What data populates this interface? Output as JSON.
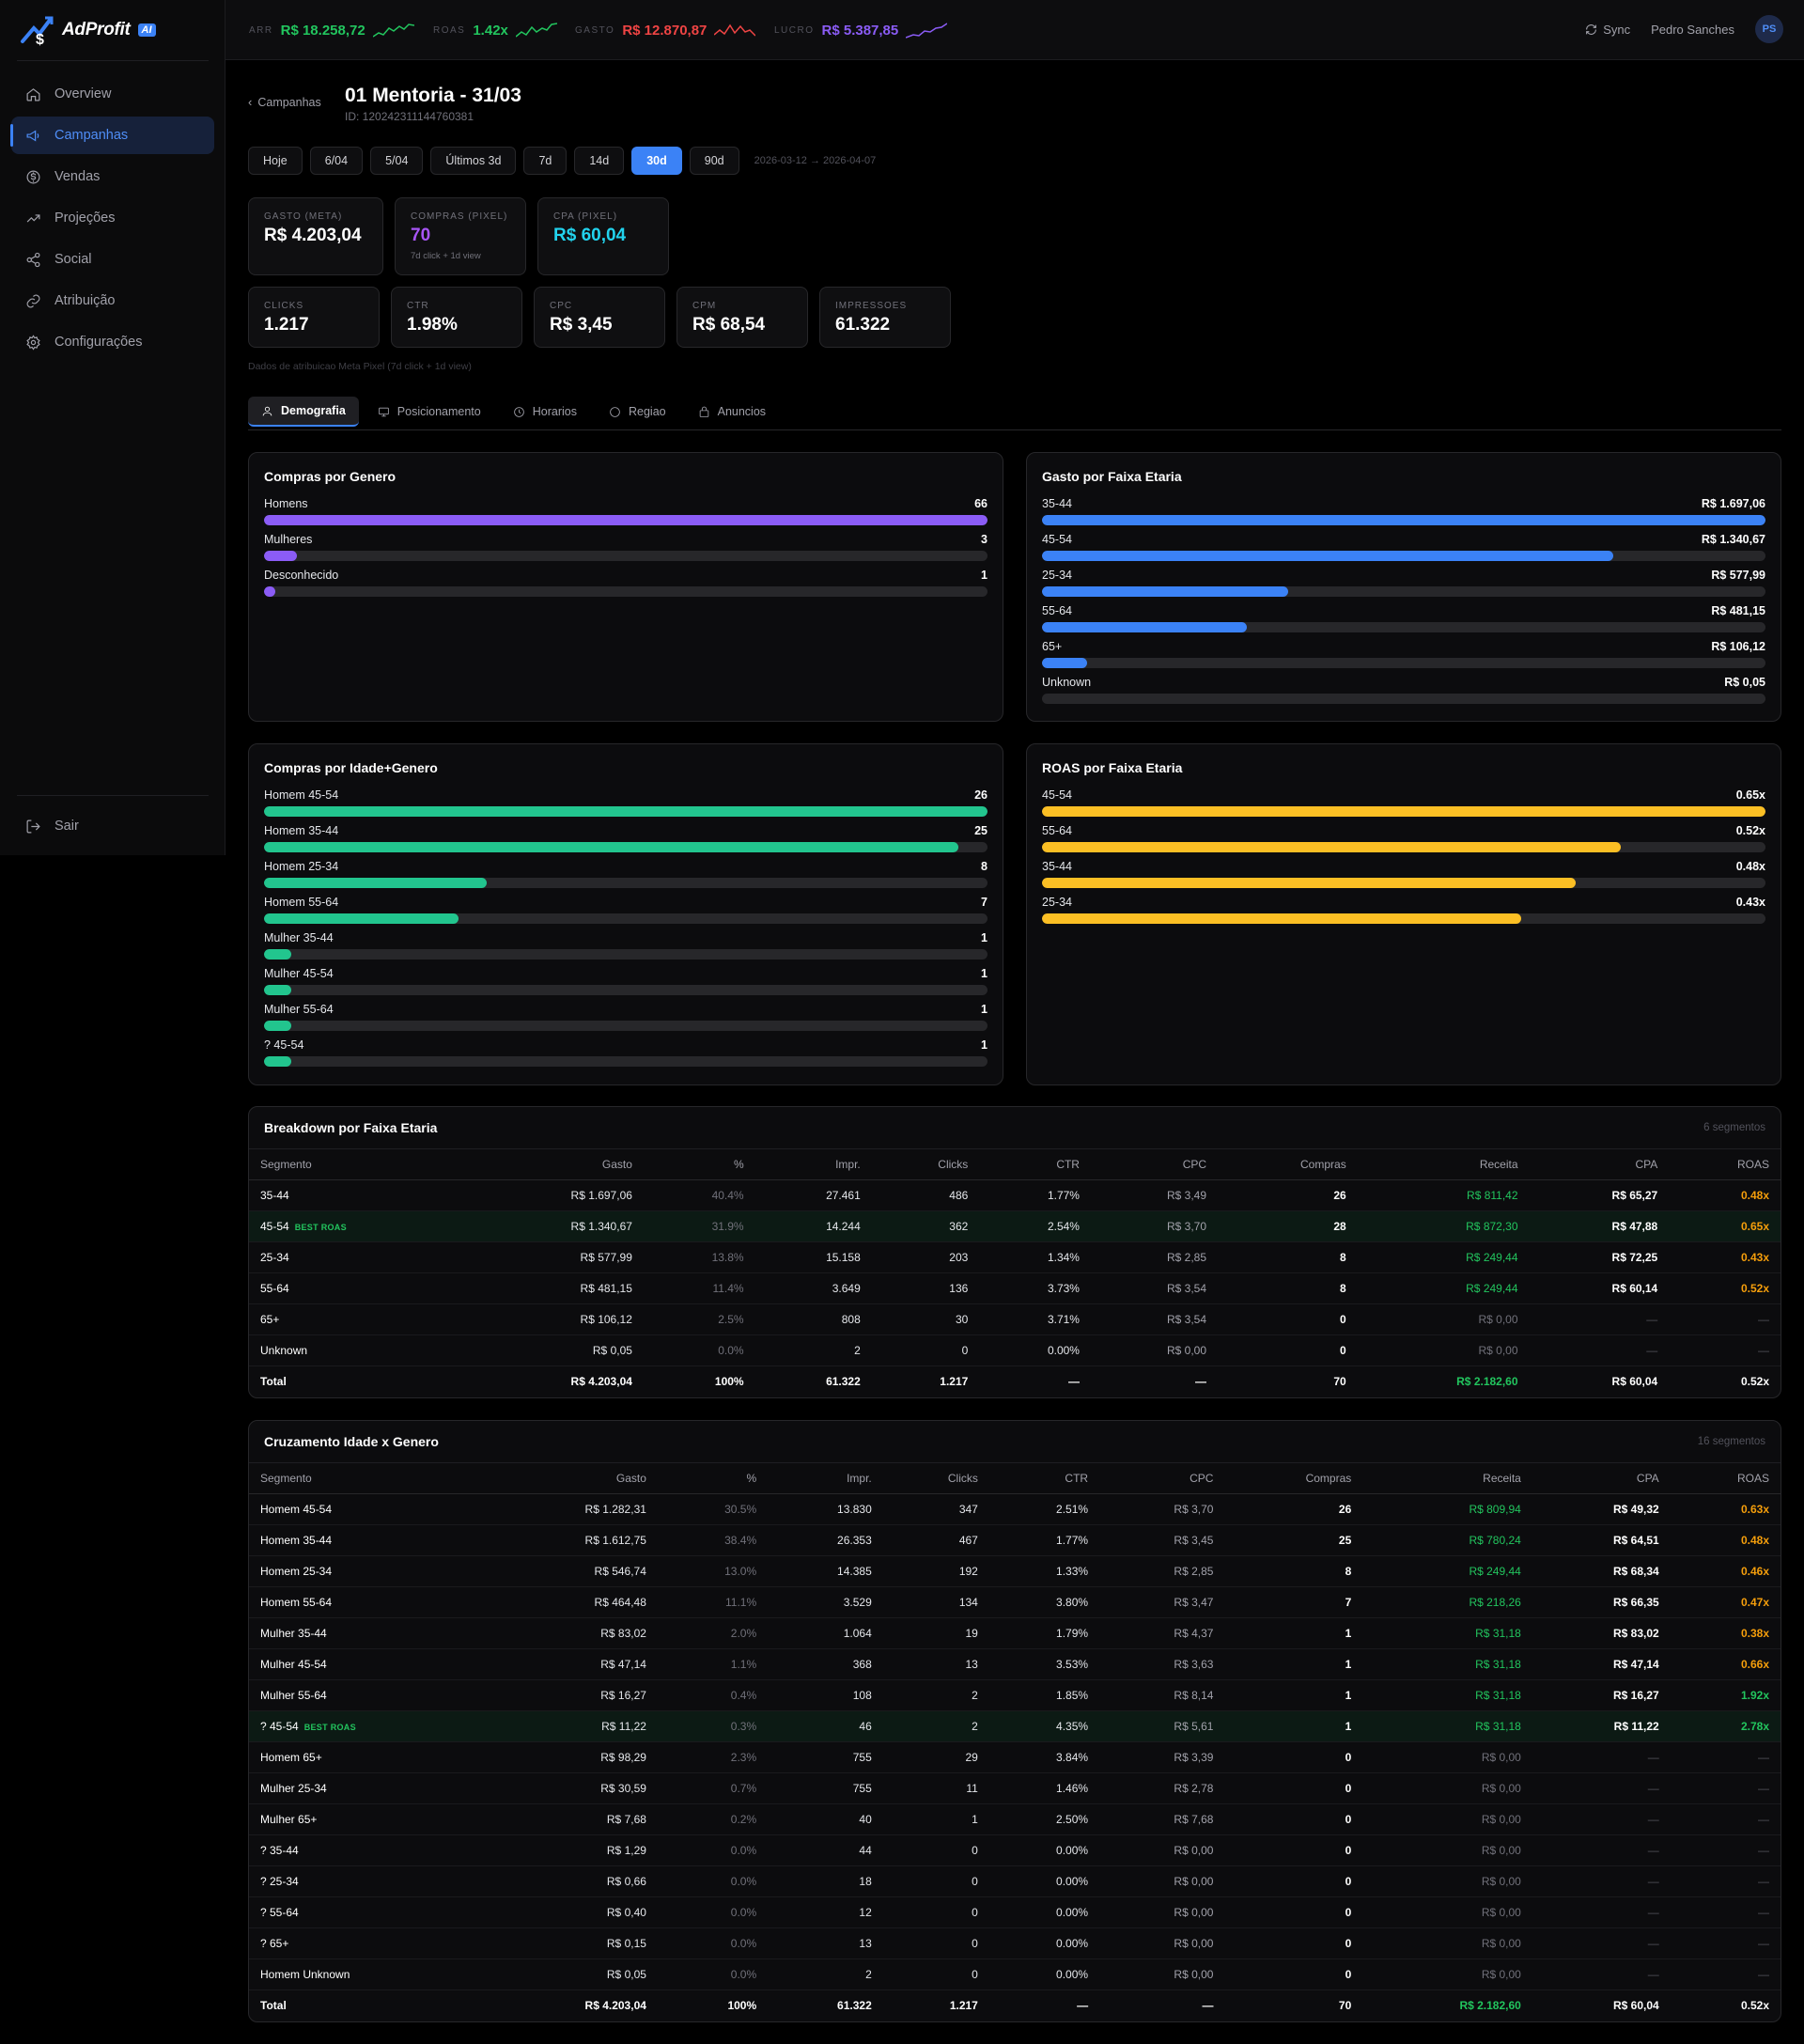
{
  "brand": {
    "name": "AdProfit",
    "badge": "AI"
  },
  "nav": {
    "items": [
      {
        "label": "Overview",
        "icon": "home-icon"
      },
      {
        "label": "Campanhas",
        "icon": "megaphone-icon"
      },
      {
        "label": "Vendas",
        "icon": "dollar-icon"
      },
      {
        "label": "Projeções",
        "icon": "trend-icon"
      },
      {
        "label": "Social",
        "icon": "share-icon"
      },
      {
        "label": "Atribuição",
        "icon": "link-icon"
      },
      {
        "label": "Configurações",
        "icon": "gear-icon"
      }
    ],
    "active": "Campanhas",
    "logout": "Sair"
  },
  "topbar": {
    "kpis": [
      {
        "label": "ARR",
        "value": "R$ 18.258,72",
        "color": "#22c55e"
      },
      {
        "label": "ROAS",
        "value": "1.42x",
        "color": "#22c55e"
      },
      {
        "label": "GASTO",
        "value": "R$ 12.870,87",
        "color": "#ef4444"
      },
      {
        "label": "LUCRO",
        "value": "R$ 5.387,85",
        "color": "#8b5cf6"
      }
    ],
    "sync": "Sync",
    "user": "Pedro Sanches",
    "avatar": "PS"
  },
  "header": {
    "back": "Campanhas",
    "title": "01 Mentoria - 31/03",
    "id": "ID: 120242311144760381"
  },
  "filters": {
    "buttons": [
      "Hoje",
      "6/04",
      "5/04",
      "Últimos 3d",
      "7d",
      "14d",
      "30d",
      "90d"
    ],
    "active": "30d",
    "range": "2026-03-12 → 2026-04-07"
  },
  "metrics_top": [
    {
      "label": "GASTO (META)",
      "value": "R$ 4.203,04",
      "color": "#ffffff",
      "sub": ""
    },
    {
      "label": "COMPRAS (PIXEL)",
      "value": "70",
      "color": "#a855f7",
      "sub": "7d click + 1d view"
    },
    {
      "label": "CPA (PIXEL)",
      "value": "R$ 60,04",
      "color": "#22d3ee",
      "sub": ""
    }
  ],
  "metrics_bottom": [
    {
      "label": "CLICKS",
      "value": "1.217"
    },
    {
      "label": "CTR",
      "value": "1.98%"
    },
    {
      "label": "CPC",
      "value": "R$ 3,45"
    },
    {
      "label": "CPM",
      "value": "R$ 68,54"
    },
    {
      "label": "IMPRESSOES",
      "value": "61.322"
    }
  ],
  "note": "Dados de atribuicao Meta Pixel (7d click + 1d view)",
  "tabs": [
    {
      "label": "Demografia",
      "icon": "user-icon"
    },
    {
      "label": "Posicionamento",
      "icon": "monitor-icon"
    },
    {
      "label": "Horarios",
      "icon": "clock-icon"
    },
    {
      "label": "Regiao",
      "icon": "globe-icon"
    },
    {
      "label": "Anuncios",
      "icon": "ad-icon"
    }
  ],
  "active_tab": "Demografia",
  "panels": [
    {
      "title": "Compras por Genero",
      "color": "#8b5cf6",
      "rows": [
        {
          "label": "Homens",
          "value": "66",
          "fill": 1.0
        },
        {
          "label": "Mulheres",
          "value": "3",
          "fill": 0.045
        },
        {
          "label": "Desconhecido",
          "value": "1",
          "fill": 0.015
        }
      ]
    },
    {
      "title": "Gasto por Faixa Etaria",
      "color": "#3b82f6",
      "rows": [
        {
          "label": "35-44",
          "value": "R$ 1.697,06",
          "fill": 1.0
        },
        {
          "label": "45-54",
          "value": "R$ 1.340,67",
          "fill": 0.79
        },
        {
          "label": "25-34",
          "value": "R$ 577,99",
          "fill": 0.34
        },
        {
          "label": "55-64",
          "value": "R$ 481,15",
          "fill": 0.283
        },
        {
          "label": "65+",
          "value": "R$ 106,12",
          "fill": 0.0625
        },
        {
          "label": "Unknown",
          "value": "R$ 0,05",
          "fill": 0.0
        }
      ]
    },
    {
      "title": "Compras por Idade+Genero",
      "color": "#22c58e",
      "rows": [
        {
          "label": "Homem 45-54",
          "value": "26",
          "fill": 1.0
        },
        {
          "label": "Homem 35-44",
          "value": "25",
          "fill": 0.96
        },
        {
          "label": "Homem 25-34",
          "value": "8",
          "fill": 0.308
        },
        {
          "label": "Homem 55-64",
          "value": "7",
          "fill": 0.269
        },
        {
          "label": "Mulher 35-44",
          "value": "1",
          "fill": 0.038
        },
        {
          "label": "Mulher 45-54",
          "value": "1",
          "fill": 0.038
        },
        {
          "label": "Mulher 55-64",
          "value": "1",
          "fill": 0.038
        },
        {
          "label": "? 45-54",
          "value": "1",
          "fill": 0.038
        }
      ]
    },
    {
      "title": "ROAS por Faixa Etaria",
      "color": "#fbbf24",
      "rows": [
        {
          "label": "45-54",
          "value": "0.65x",
          "fill": 1.0
        },
        {
          "label": "55-64",
          "value": "0.52x",
          "fill": 0.8
        },
        {
          "label": "35-44",
          "value": "0.48x",
          "fill": 0.738
        },
        {
          "label": "25-34",
          "value": "0.43x",
          "fill": 0.662
        }
      ]
    }
  ],
  "table_age": {
    "title": "Breakdown por Faixa Etaria",
    "count": "6 segmentos",
    "best_tag": "BEST ROAS",
    "columns": [
      "Segmento",
      "Gasto",
      "%",
      "Impr.",
      "Clicks",
      "CTR",
      "CPC",
      "Compras",
      "Receita",
      "CPA",
      "ROAS"
    ],
    "rows": [
      [
        "35-44",
        "R$ 1.697,06",
        "40.4%",
        "27.461",
        "486",
        "1.77%",
        "R$ 3,49",
        "26",
        "R$ 811,42",
        "R$ 65,27",
        "0.48x"
      ],
      [
        "45-54",
        "R$ 1.340,67",
        "31.9%",
        "14.244",
        "362",
        "2.54%",
        "R$ 3,70",
        "28",
        "R$ 872,30",
        "R$ 47,88",
        "0.65x"
      ],
      [
        "25-34",
        "R$ 577,99",
        "13.8%",
        "15.158",
        "203",
        "1.34%",
        "R$ 2,85",
        "8",
        "R$ 249,44",
        "R$ 72,25",
        "0.43x"
      ],
      [
        "55-64",
        "R$ 481,15",
        "11.4%",
        "3.649",
        "136",
        "3.73%",
        "R$ 3,54",
        "8",
        "R$ 249,44",
        "R$ 60,14",
        "0.52x"
      ],
      [
        "65+",
        "R$ 106,12",
        "2.5%",
        "808",
        "30",
        "3.71%",
        "R$ 3,54",
        "0",
        "R$ 0,00",
        "—",
        "—"
      ],
      [
        "Unknown",
        "R$ 0,05",
        "0.0%",
        "2",
        "0",
        "0.00%",
        "R$ 0,00",
        "0",
        "R$ 0,00",
        "—",
        "—"
      ]
    ],
    "best_row": 1,
    "total": [
      "Total",
      "R$ 4.203,04",
      "100%",
      "61.322",
      "1.217",
      "—",
      "—",
      "70",
      "R$ 2.182,60",
      "R$ 60,04",
      "0.52x"
    ]
  },
  "table_cross": {
    "title": "Cruzamento Idade x Genero",
    "count": "16 segmentos",
    "best_tag": "BEST ROAS",
    "columns": [
      "Segmento",
      "Gasto",
      "%",
      "Impr.",
      "Clicks",
      "CTR",
      "CPC",
      "Compras",
      "Receita",
      "CPA",
      "ROAS"
    ],
    "rows": [
      [
        "Homem 45-54",
        "R$ 1.282,31",
        "30.5%",
        "13.830",
        "347",
        "2.51%",
        "R$ 3,70",
        "26",
        "R$ 809,94",
        "R$ 49,32",
        "0.63x"
      ],
      [
        "Homem 35-44",
        "R$ 1.612,75",
        "38.4%",
        "26.353",
        "467",
        "1.77%",
        "R$ 3,45",
        "25",
        "R$ 780,24",
        "R$ 64,51",
        "0.48x"
      ],
      [
        "Homem 25-34",
        "R$ 546,74",
        "13.0%",
        "14.385",
        "192",
        "1.33%",
        "R$ 2,85",
        "8",
        "R$ 249,44",
        "R$ 68,34",
        "0.46x"
      ],
      [
        "Homem 55-64",
        "R$ 464,48",
        "11.1%",
        "3.529",
        "134",
        "3.80%",
        "R$ 3,47",
        "7",
        "R$ 218,26",
        "R$ 66,35",
        "0.47x"
      ],
      [
        "Mulher 35-44",
        "R$ 83,02",
        "2.0%",
        "1.064",
        "19",
        "1.79%",
        "R$ 4,37",
        "1",
        "R$ 31,18",
        "R$ 83,02",
        "0.38x"
      ],
      [
        "Mulher 45-54",
        "R$ 47,14",
        "1.1%",
        "368",
        "13",
        "3.53%",
        "R$ 3,63",
        "1",
        "R$ 31,18",
        "R$ 47,14",
        "0.66x"
      ],
      [
        "Mulher 55-64",
        "R$ 16,27",
        "0.4%",
        "108",
        "2",
        "1.85%",
        "R$ 8,14",
        "1",
        "R$ 31,18",
        "R$ 16,27",
        "1.92x"
      ],
      [
        "? 45-54",
        "R$ 11,22",
        "0.3%",
        "46",
        "2",
        "4.35%",
        "R$ 5,61",
        "1",
        "R$ 31,18",
        "R$ 11,22",
        "2.78x"
      ],
      [
        "Homem 65+",
        "R$ 98,29",
        "2.3%",
        "755",
        "29",
        "3.84%",
        "R$ 3,39",
        "0",
        "R$ 0,00",
        "—",
        "—"
      ],
      [
        "Mulher 25-34",
        "R$ 30,59",
        "0.7%",
        "755",
        "11",
        "1.46%",
        "R$ 2,78",
        "0",
        "R$ 0,00",
        "—",
        "—"
      ],
      [
        "Mulher 65+",
        "R$ 7,68",
        "0.2%",
        "40",
        "1",
        "2.50%",
        "R$ 7,68",
        "0",
        "R$ 0,00",
        "—",
        "—"
      ],
      [
        "? 35-44",
        "R$ 1,29",
        "0.0%",
        "44",
        "0",
        "0.00%",
        "R$ 0,00",
        "0",
        "R$ 0,00",
        "—",
        "—"
      ],
      [
        "? 25-34",
        "R$ 0,66",
        "0.0%",
        "18",
        "0",
        "0.00%",
        "R$ 0,00",
        "0",
        "R$ 0,00",
        "—",
        "—"
      ],
      [
        "? 55-64",
        "R$ 0,40",
        "0.0%",
        "12",
        "0",
        "0.00%",
        "R$ 0,00",
        "0",
        "R$ 0,00",
        "—",
        "—"
      ],
      [
        "? 65+",
        "R$ 0,15",
        "0.0%",
        "13",
        "0",
        "0.00%",
        "R$ 0,00",
        "0",
        "R$ 0,00",
        "—",
        "—"
      ],
      [
        "Homem Unknown",
        "R$ 0,05",
        "0.0%",
        "2",
        "0",
        "0.00%",
        "R$ 0,00",
        "0",
        "R$ 0,00",
        "—",
        "—"
      ]
    ],
    "best_row": 7,
    "total": [
      "Total",
      "R$ 4.203,04",
      "100%",
      "61.322",
      "1.217",
      "—",
      "—",
      "70",
      "R$ 2.182,60",
      "R$ 60,04",
      "0.52x"
    ]
  }
}
